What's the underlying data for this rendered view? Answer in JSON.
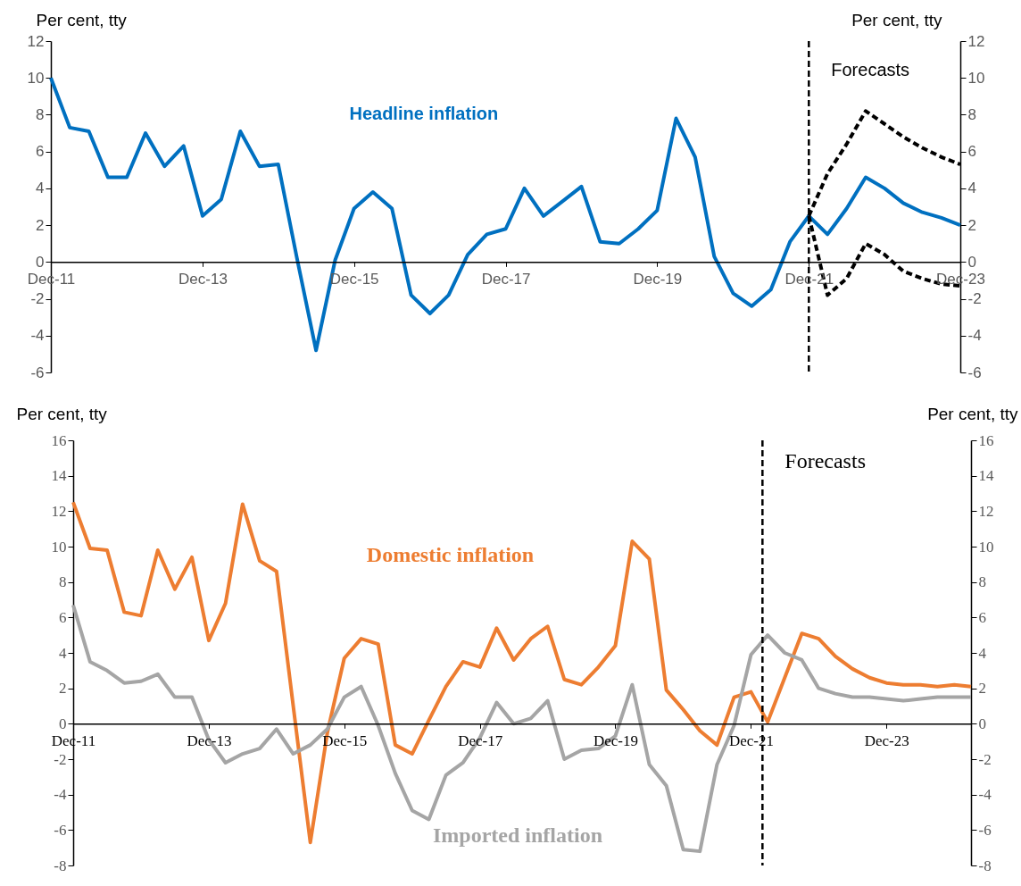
{
  "chart_data": [
    {
      "type": "line",
      "ylabel": "Per cent, tty",
      "y2label": "Per cent, tty",
      "x": [
        "2011-12",
        "2012-03",
        "2012-06",
        "2012-09",
        "2012-12",
        "2013-03",
        "2013-06",
        "2013-09",
        "2013-12",
        "2014-03",
        "2014-06",
        "2014-09",
        "2014-12",
        "2015-03",
        "2015-06",
        "2015-09",
        "2015-12",
        "2016-03",
        "2016-06",
        "2016-09",
        "2016-12",
        "2017-03",
        "2017-06",
        "2017-09",
        "2017-12",
        "2018-03",
        "2018-06",
        "2018-09",
        "2018-12",
        "2019-03",
        "2019-06",
        "2019-09",
        "2019-12",
        "2020-03",
        "2020-06",
        "2020-09",
        "2020-12",
        "2021-03",
        "2021-06",
        "2021-09",
        "2021-12",
        "2022-03",
        "2022-06",
        "2022-09",
        "2022-12",
        "2023-03",
        "2023-06",
        "2023-09",
        "2023-12"
      ],
      "xlim": [
        "2011-12",
        "2023-12"
      ],
      "xticks": [
        {
          "value": "2011-12",
          "label": "Dec-11"
        },
        {
          "value": "2013-12",
          "label": "Dec-13"
        },
        {
          "value": "2015-12",
          "label": "Dec-15"
        },
        {
          "value": "2017-12",
          "label": "Dec-17"
        },
        {
          "value": "2019-12",
          "label": "Dec-19"
        },
        {
          "value": "2021-12",
          "label": "Dec-21"
        },
        {
          "value": "2023-12",
          "label": "Dec-23"
        }
      ],
      "ylim": [
        -6,
        12
      ],
      "yticks": [
        -6,
        -4,
        -2,
        0,
        2,
        4,
        6,
        8,
        10,
        12
      ],
      "y2lim": [
        -6,
        12
      ],
      "y2ticks": [
        -6,
        -4,
        -2,
        0,
        2,
        4,
        6,
        8,
        10,
        12
      ],
      "series": [
        {
          "name": "Headline inflation",
          "color": "#0070c0",
          "values": [
            10.0,
            7.3,
            7.1,
            4.6,
            4.6,
            7.0,
            5.2,
            6.3,
            2.5,
            3.4,
            7.1,
            5.2,
            5.3,
            0.2,
            -4.8,
            0.1,
            2.9,
            3.8,
            2.9,
            -1.8,
            -2.8,
            -1.8,
            0.4,
            1.5,
            1.8,
            4.0,
            2.5,
            3.3,
            4.1,
            1.1,
            1.0,
            1.8,
            2.8,
            7.8,
            5.7,
            0.3,
            -1.7,
            -2.4,
            -1.5,
            1.1,
            2.5,
            1.5,
            2.9,
            4.6,
            4.0,
            3.2,
            2.7,
            2.4,
            2.0
          ]
        },
        {
          "color": "#000000",
          "line_style": "dashed",
          "x": [
            "2021-12",
            "2022-03",
            "2022-06",
            "2022-09",
            "2022-12",
            "2023-03",
            "2023-06",
            "2023-09",
            "2023-12"
          ],
          "values": [
            2.5,
            4.8,
            6.4,
            8.2,
            7.5,
            6.8,
            6.2,
            5.7,
            5.3
          ]
        },
        {
          "color": "#000000",
          "line_style": "dashed",
          "x": [
            "2021-12",
            "2022-03",
            "2022-06",
            "2022-09",
            "2022-12",
            "2023-03",
            "2023-06",
            "2023-09",
            "2023-12"
          ],
          "values": [
            2.5,
            -1.8,
            -0.9,
            1.0,
            0.4,
            -0.5,
            -0.9,
            -1.2,
            -1.3
          ]
        }
      ],
      "ref_lines": [
        {
          "axis": "x",
          "value": "2021-12",
          "label": "Forecasts",
          "line_style": "dashed",
          "color": "#000000"
        }
      ]
    },
    {
      "type": "line",
      "ylabel": "Per cent, tty",
      "y2label": "Per cent, tty",
      "x": [
        "2011-12",
        "2012-03",
        "2012-06",
        "2012-09",
        "2012-12",
        "2013-03",
        "2013-06",
        "2013-09",
        "2013-12",
        "2014-03",
        "2014-06",
        "2014-09",
        "2014-12",
        "2015-03",
        "2015-06",
        "2015-09",
        "2015-12",
        "2016-03",
        "2016-06",
        "2016-09",
        "2016-12",
        "2017-03",
        "2017-06",
        "2017-09",
        "2017-12",
        "2018-03",
        "2018-06",
        "2018-09",
        "2018-12",
        "2019-03",
        "2019-06",
        "2019-09",
        "2019-12",
        "2020-03",
        "2020-06",
        "2020-09",
        "2020-12",
        "2021-03",
        "2021-06",
        "2021-09",
        "2021-12",
        "2022-03",
        "2022-06",
        "2022-09",
        "2022-12",
        "2023-03",
        "2023-06",
        "2023-09",
        "2023-12",
        "2024-03",
        "2024-06",
        "2024-09",
        "2024-12",
        "2025-03"
      ],
      "xlim": [
        "2011-12",
        "2025-03"
      ],
      "xticks": [
        {
          "value": "2011-12",
          "label": "Dec-11"
        },
        {
          "value": "2013-12",
          "label": "Dec-13"
        },
        {
          "value": "2015-12",
          "label": "Dec-15"
        },
        {
          "value": "2017-12",
          "label": "Dec-17"
        },
        {
          "value": "2019-12",
          "label": "Dec-19"
        },
        {
          "value": "2021-12",
          "label": "Dec-21"
        },
        {
          "value": "2023-12",
          "label": "Dec-23"
        }
      ],
      "ylim": [
        -8,
        16
      ],
      "yticks": [
        -8,
        -6,
        -4,
        -2,
        0,
        2,
        4,
        6,
        8,
        10,
        12,
        14,
        16
      ],
      "y2lim": [
        -8,
        16
      ],
      "y2ticks": [
        -8,
        -6,
        -4,
        -2,
        0,
        2,
        4,
        6,
        8,
        10,
        12,
        14,
        16
      ],
      "series": [
        {
          "name": "Domestic inflation",
          "color": "#ed7d31",
          "values": [
            12.5,
            9.9,
            9.8,
            6.3,
            6.1,
            9.8,
            7.6,
            9.4,
            4.7,
            6.8,
            12.4,
            9.2,
            8.6,
            1.0,
            -6.7,
            -0.5,
            3.7,
            4.8,
            4.5,
            -1.2,
            -1.7,
            0.2,
            2.1,
            3.5,
            3.2,
            5.4,
            3.6,
            4.8,
            5.5,
            2.5,
            2.2,
            3.2,
            4.4,
            10.3,
            9.3,
            1.9,
            0.8,
            -0.4,
            -1.2,
            1.5,
            1.8,
            0.1,
            2.6,
            5.1,
            4.8,
            3.8,
            3.1,
            2.6,
            2.3,
            2.2,
            2.2,
            2.1,
            2.2,
            2.1
          ]
        },
        {
          "name": "Imported inflation",
          "color": "#a5a5a5",
          "values": [
            6.7,
            3.5,
            3.0,
            2.3,
            2.4,
            2.8,
            1.5,
            1.5,
            -0.9,
            -2.2,
            -1.7,
            -1.4,
            -0.3,
            -1.7,
            -1.2,
            -0.3,
            1.5,
            2.1,
            -0.1,
            -2.8,
            -4.9,
            -5.4,
            -2.9,
            -2.2,
            -0.8,
            1.2,
            0.0,
            0.3,
            1.3,
            -2.0,
            -1.5,
            -1.4,
            -0.7,
            2.2,
            -2.3,
            -3.5,
            -7.1,
            -7.2,
            -2.3,
            -0.1,
            3.9,
            5.0,
            4.0,
            3.6,
            2.0,
            1.7,
            1.5,
            1.5,
            1.4,
            1.3,
            1.4,
            1.5,
            1.5,
            1.5
          ]
        }
      ],
      "ref_lines": [
        {
          "axis": "x",
          "value": "2022-02",
          "label": "Forecasts",
          "line_style": "dashed",
          "color": "#000000"
        }
      ]
    }
  ]
}
